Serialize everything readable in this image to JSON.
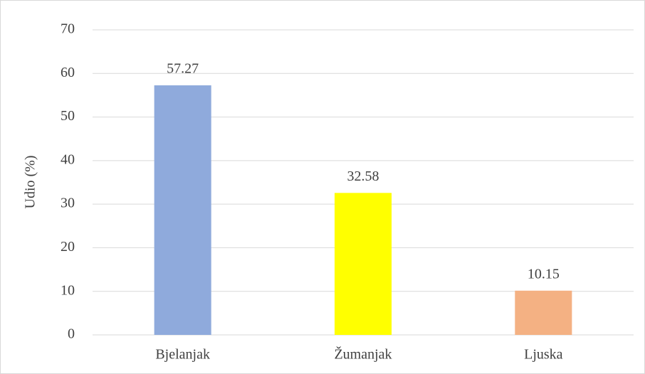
{
  "chart_data": {
    "type": "bar",
    "y_label": "Udio (%)",
    "categories": [
      "Bjelanjak",
      "Žumanjak",
      "Ljuska"
    ],
    "values": [
      57.27,
      32.58,
      10.15
    ],
    "colors": [
      "#8faadc",
      "#ffff00",
      "#f4b183"
    ],
    "ylim": [
      0,
      70
    ],
    "yticks": [
      0,
      10,
      20,
      30,
      40,
      50,
      60,
      70
    ],
    "grid": true
  }
}
